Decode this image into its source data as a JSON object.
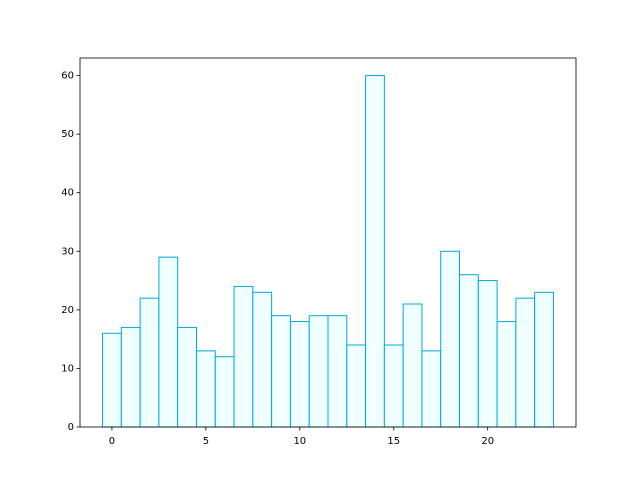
{
  "chart_data": {
    "type": "bar",
    "x": [
      0,
      1,
      2,
      3,
      4,
      5,
      6,
      7,
      8,
      9,
      10,
      11,
      12,
      13,
      14,
      15,
      16,
      17,
      18,
      19,
      20,
      21,
      22,
      23
    ],
    "values": [
      16,
      17,
      22,
      29,
      17,
      13,
      12,
      24,
      23,
      19,
      18,
      19,
      19,
      14,
      60,
      14,
      21,
      13,
      30,
      26,
      25,
      18,
      22,
      23
    ],
    "color": "#f0ffff",
    "edgecolor": "#00a8e0",
    "xlim": [
      -1.7,
      24.7
    ],
    "xticks": [
      0,
      5,
      10,
      15,
      20
    ],
    "ylim": [
      0,
      63
    ],
    "yticks": [
      0,
      10,
      20,
      30,
      40,
      50,
      60
    ]
  }
}
